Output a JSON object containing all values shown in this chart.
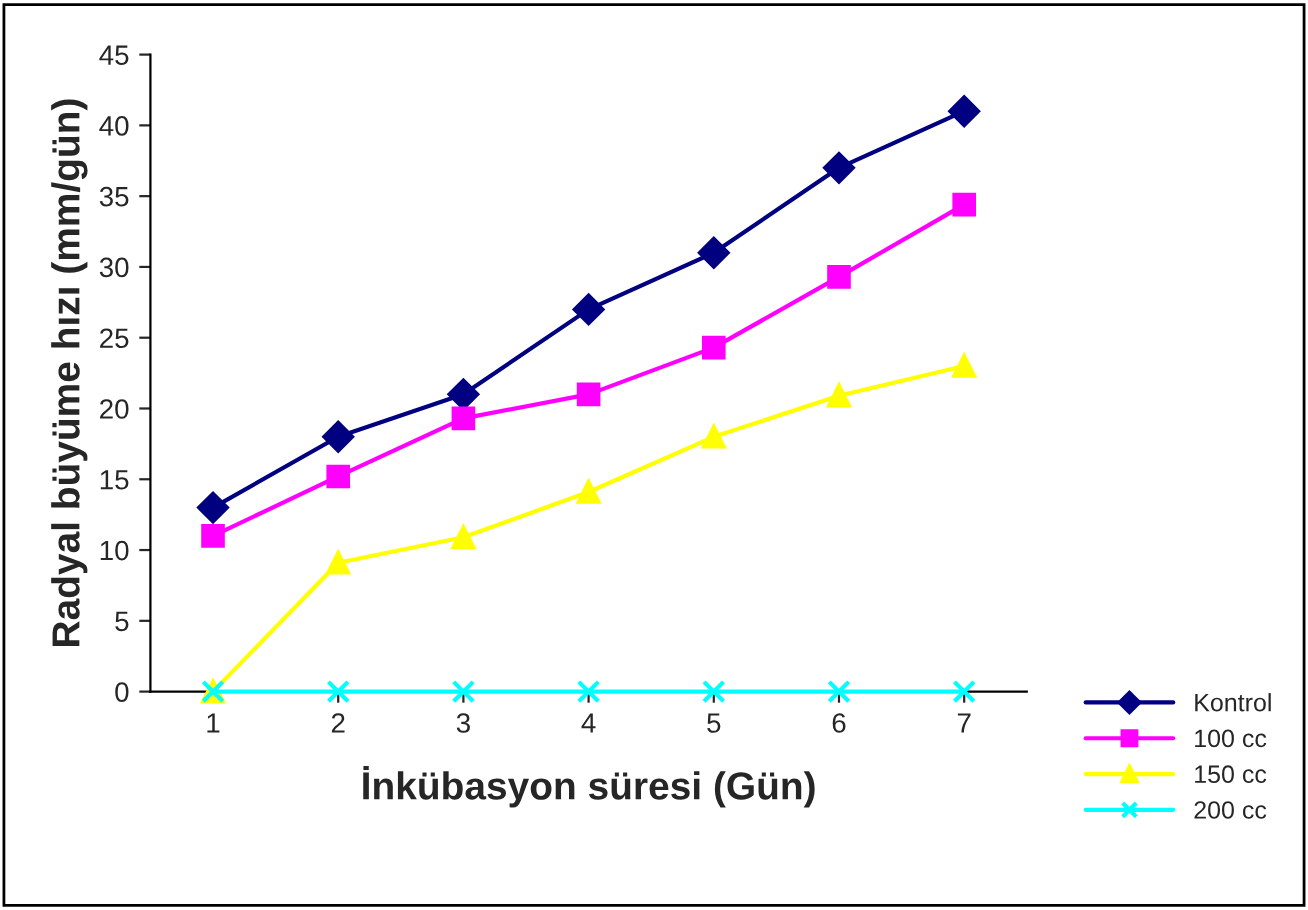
{
  "chart_data": {
    "type": "line",
    "xlabel": "İnkübasyon süresi (Gün)",
    "ylabel": "Radyal büyüme hızı (mm/gün)",
    "categories": [
      "1",
      "2",
      "3",
      "4",
      "5",
      "6",
      "7"
    ],
    "ylim": [
      0,
      45
    ],
    "yticks": [
      0,
      5,
      10,
      15,
      20,
      25,
      30,
      35,
      40,
      45
    ],
    "grid": false,
    "legend": "bottom right",
    "series": [
      {
        "name": "Kontrol",
        "color": "#000080",
        "marker": "diamond",
        "values": [
          13,
          18,
          21,
          27,
          31,
          37,
          41
        ]
      },
      {
        "name": "100 cc",
        "color": "#ff00ff",
        "marker": "square",
        "values": [
          11,
          15.2,
          19.3,
          21,
          24.3,
          29.3,
          34.4
        ]
      },
      {
        "name": "150 cc",
        "color": "#ffff00",
        "marker": "triangle",
        "values": [
          0,
          9.1,
          10.9,
          14.1,
          18,
          20.9,
          23
        ]
      },
      {
        "name": "200 cc",
        "color": "#00ffff",
        "marker": "cross",
        "values": [
          0,
          0,
          0,
          0,
          0,
          0,
          0
        ]
      }
    ]
  }
}
